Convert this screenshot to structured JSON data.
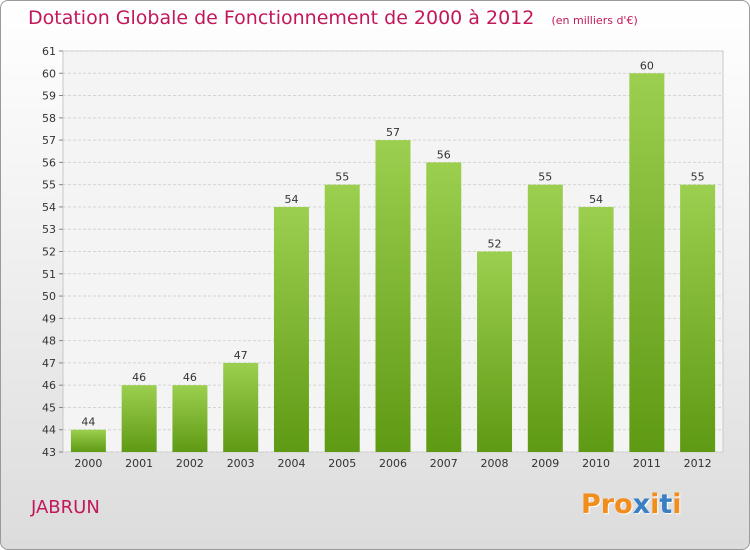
{
  "header": {
    "title": "Dotation Globale de Fonctionnement de 2000 à 2012",
    "unit": "(en milliers d'€)"
  },
  "footer": {
    "commune": "JABRUN",
    "logo": "Proxiti"
  },
  "colors": {
    "accent": "#c2185b",
    "bar_light": "#9ccf4f",
    "bar_dark": "#5f9a14",
    "logo_letters": [
      "#f28c1a",
      "#f28c1a",
      "#f28c1a",
      "#3a7fc4",
      "#f28c1a",
      "#3a7fc4",
      "#f28c1a"
    ]
  },
  "chart_data": {
    "type": "bar",
    "title": "Dotation Globale de Fonctionnement de 2000 à 2012",
    "subtitle": "(en milliers d'€)",
    "categories": [
      "2000",
      "2001",
      "2002",
      "2003",
      "2004",
      "2005",
      "2006",
      "2007",
      "2008",
      "2009",
      "2010",
      "2011",
      "2012"
    ],
    "values": [
      44,
      46,
      46,
      47,
      54,
      55,
      57,
      56,
      52,
      55,
      54,
      60,
      55
    ],
    "ylim": [
      43,
      61
    ],
    "yticks": [
      43,
      44,
      45,
      46,
      47,
      48,
      49,
      50,
      51,
      52,
      53,
      54,
      55,
      56,
      57,
      58,
      59,
      60,
      61
    ],
    "grid": true,
    "xlabel": "",
    "ylabel": ""
  }
}
